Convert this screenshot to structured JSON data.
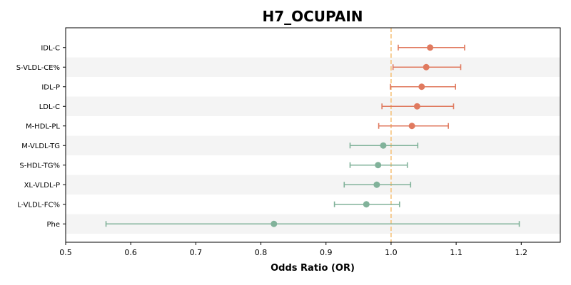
{
  "chart_data": {
    "type": "scatter",
    "subtype": "forest-plot",
    "title": "H7_OCUPAIN",
    "xlabel": "Odds Ratio (OR)",
    "ylabel": "",
    "xlim": [
      0.5,
      1.26
    ],
    "xticks": [
      "0.5",
      "0.6",
      "0.7",
      "0.8",
      "0.9",
      "1.0",
      "1.1",
      "1.2"
    ],
    "reference_line": 1.0,
    "reference_color": "#f5c27a",
    "colors": {
      "risk": "#e07a5f",
      "protective": "#81b29a",
      "band": "#f4f4f4"
    },
    "grid": false,
    "rows": [
      {
        "label": "IDL-C",
        "or": 1.06,
        "lo": 1.011,
        "hi": 1.113,
        "group": "risk"
      },
      {
        "label": "S-VLDL-CE%",
        "or": 1.054,
        "lo": 1.003,
        "hi": 1.107,
        "group": "risk"
      },
      {
        "label": "IDL-P",
        "or": 1.047,
        "lo": 0.999,
        "hi": 1.099,
        "group": "risk"
      },
      {
        "label": "LDL-C",
        "or": 1.04,
        "lo": 0.986,
        "hi": 1.096,
        "group": "risk"
      },
      {
        "label": "M-HDL-PL",
        "or": 1.032,
        "lo": 0.981,
        "hi": 1.088,
        "group": "risk"
      },
      {
        "label": "M-VLDL-TG",
        "or": 0.988,
        "lo": 0.937,
        "hi": 1.041,
        "group": "protective"
      },
      {
        "label": "S-HDL-TG%",
        "or": 0.98,
        "lo": 0.937,
        "hi": 1.025,
        "group": "protective"
      },
      {
        "label": "XL-VLDL-P",
        "or": 0.978,
        "lo": 0.928,
        "hi": 1.03,
        "group": "protective"
      },
      {
        "label": "L-VLDL-FC%",
        "or": 0.962,
        "lo": 0.913,
        "hi": 1.013,
        "group": "protective"
      },
      {
        "label": "Phe",
        "or": 0.82,
        "lo": 0.562,
        "hi": 1.197,
        "group": "protective"
      }
    ]
  }
}
